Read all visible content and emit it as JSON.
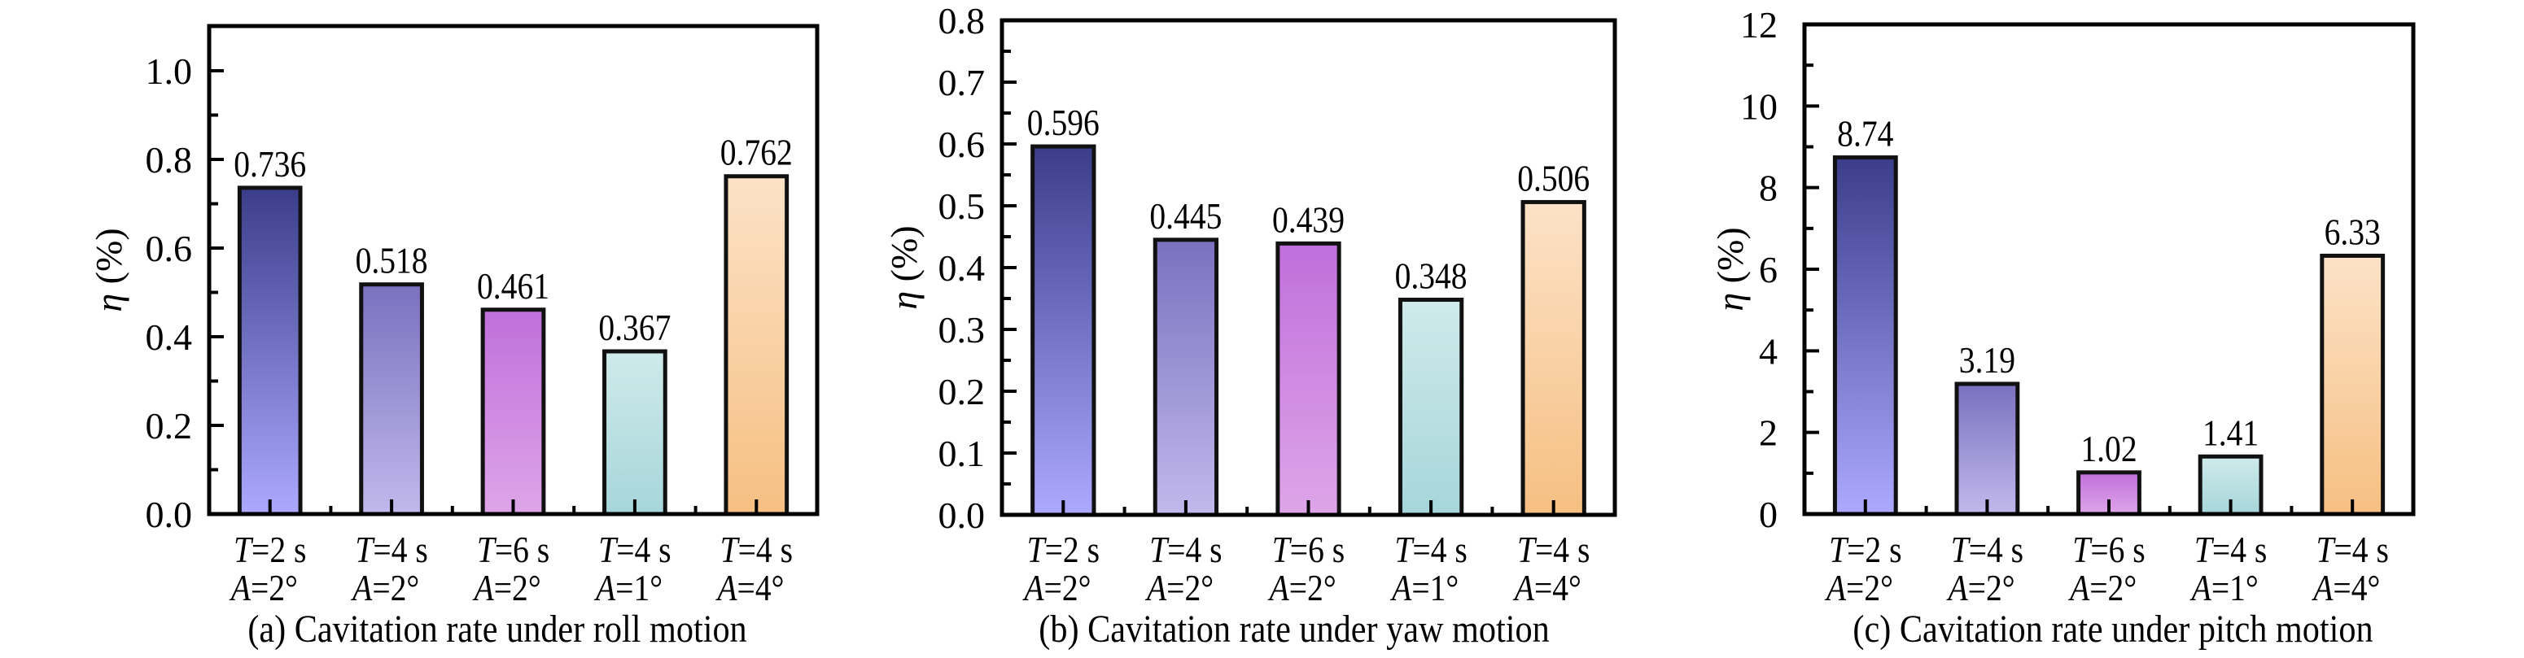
{
  "figure": {
    "panels": [
      "a",
      "b",
      "c"
    ]
  },
  "bar_colors": [
    {
      "top": "#3b3d8a",
      "bottom": "#aca9ff"
    },
    {
      "top": "#7a70bf",
      "bottom": "#c1b9ec"
    },
    {
      "top": "#c06fdb",
      "bottom": "#dea5e8"
    },
    {
      "top": "#cfeaea",
      "bottom": "#a6d6da"
    },
    {
      "top": "#fce2c7",
      "bottom": "#f6bf82"
    }
  ],
  "chart_data": [
    {
      "type": "bar",
      "title": "(a) Cavitation rate under roll motion",
      "xlabel": "",
      "ylabel": "η (%)",
      "ylim": [
        0,
        1.1
      ],
      "yticks": [
        0.0,
        0.2,
        0.4,
        0.6,
        0.8,
        1.0
      ],
      "ytick_labels": [
        "0.0",
        "0.2",
        "0.4",
        "0.6",
        "0.8",
        "1.0"
      ],
      "yminor_step": 0.1,
      "categories": [
        {
          "line1_var": "T",
          "line1_rest": "=2 s",
          "line2_var": "A",
          "line2_rest": "=2°"
        },
        {
          "line1_var": "T",
          "line1_rest": "=4 s",
          "line2_var": "A",
          "line2_rest": "=2°"
        },
        {
          "line1_var": "T",
          "line1_rest": "=6 s",
          "line2_var": "A",
          "line2_rest": "=2°"
        },
        {
          "line1_var": "T",
          "line1_rest": "=4 s",
          "line2_var": "A",
          "line2_rest": "=1°"
        },
        {
          "line1_var": "T",
          "line1_rest": "=4 s",
          "line2_var": "A",
          "line2_rest": "=4°"
        }
      ],
      "values": [
        0.736,
        0.518,
        0.461,
        0.367,
        0.762
      ],
      "value_labels": [
        "0.736",
        "0.518",
        "0.461",
        "0.367",
        "0.762"
      ],
      "grid": false,
      "legend": "none"
    },
    {
      "type": "bar",
      "title": "(b) Cavitation rate under yaw motion",
      "xlabel": "",
      "ylabel": "η (%)",
      "ylim": [
        0,
        0.8
      ],
      "yticks": [
        0.0,
        0.1,
        0.2,
        0.3,
        0.4,
        0.5,
        0.6,
        0.7,
        0.8
      ],
      "ytick_labels": [
        "0.0",
        "0.1",
        "0.2",
        "0.3",
        "0.4",
        "0.5",
        "0.6",
        "0.7",
        "0.8"
      ],
      "yminor_step": 0.05,
      "categories": [
        {
          "line1_var": "T",
          "line1_rest": "=2 s",
          "line2_var": "A",
          "line2_rest": "=2°"
        },
        {
          "line1_var": "T",
          "line1_rest": "=4 s",
          "line2_var": "A",
          "line2_rest": "=2°"
        },
        {
          "line1_var": "T",
          "line1_rest": "=6 s",
          "line2_var": "A",
          "line2_rest": "=2°"
        },
        {
          "line1_var": "T",
          "line1_rest": "=4 s",
          "line2_var": "A",
          "line2_rest": "=1°"
        },
        {
          "line1_var": "T",
          "line1_rest": "=4 s",
          "line2_var": "A",
          "line2_rest": "=4°"
        }
      ],
      "values": [
        0.596,
        0.445,
        0.439,
        0.348,
        0.506
      ],
      "value_labels": [
        "0.596",
        "0.445",
        "0.439",
        "0.348",
        "0.506"
      ],
      "grid": false,
      "legend": "none"
    },
    {
      "type": "bar",
      "title": "(c) Cavitation rate under pitch motion",
      "xlabel": "",
      "ylabel": "η (%)",
      "ylim": [
        0,
        12
      ],
      "yticks": [
        0,
        2,
        4,
        6,
        8,
        10,
        12
      ],
      "ytick_labels": [
        "0",
        "2",
        "4",
        "6",
        "8",
        "10",
        "12"
      ],
      "yminor_step": 1,
      "categories": [
        {
          "line1_var": "T",
          "line1_rest": "=2 s",
          "line2_var": "A",
          "line2_rest": "=2°"
        },
        {
          "line1_var": "T",
          "line1_rest": "=4 s",
          "line2_var": "A",
          "line2_rest": "=2°"
        },
        {
          "line1_var": "T",
          "line1_rest": "=6 s",
          "line2_var": "A",
          "line2_rest": "=2°"
        },
        {
          "line1_var": "T",
          "line1_rest": "=4 s",
          "line2_var": "A",
          "line2_rest": "=1°"
        },
        {
          "line1_var": "T",
          "line1_rest": "=4 s",
          "line2_var": "A",
          "line2_rest": "=4°"
        }
      ],
      "values": [
        8.74,
        3.19,
        1.02,
        1.41,
        6.33
      ],
      "value_labels": [
        "8.74",
        "3.19",
        "1.02",
        "1.41",
        "6.33"
      ],
      "grid": false,
      "legend": "none"
    }
  ]
}
